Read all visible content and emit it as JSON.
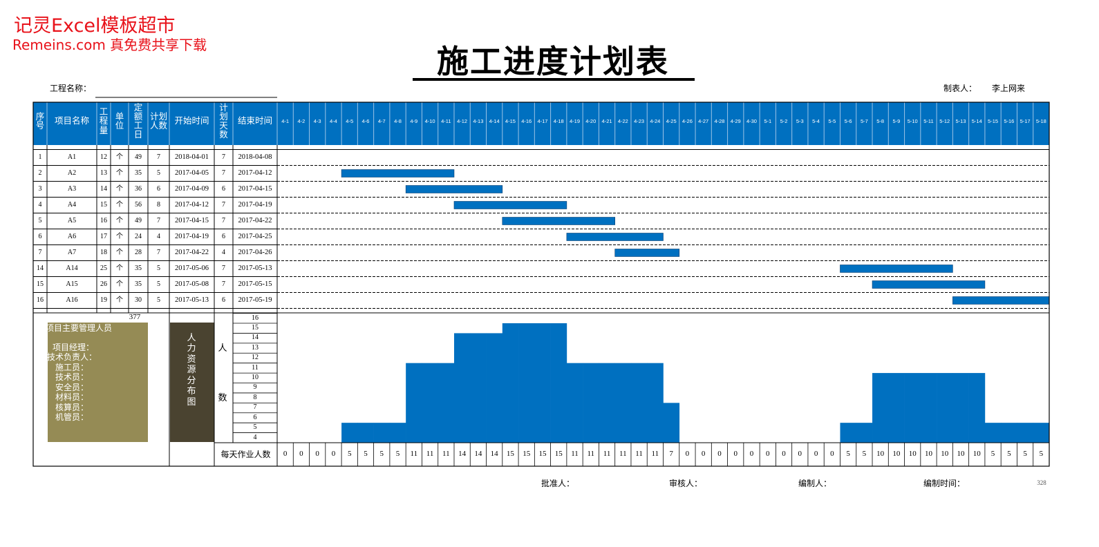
{
  "watermark": {
    "brand": "记灵Excel模板超市",
    "tagline": "Remeins.com 真免费共享下载"
  },
  "header": {
    "title": "施工进度计划表",
    "project_label": "工程名称：",
    "maker_label": "制表人：",
    "maker": "李上网来"
  },
  "table": {
    "columns": [
      "序号",
      "项目名称",
      "工程量",
      "单位",
      "定额工日",
      "计划人数",
      "开始时间",
      "计划天数",
      "结束时间"
    ],
    "dates": [
      "4-1",
      "4-2",
      "4-3",
      "4-4",
      "4-5",
      "4-6",
      "4-7",
      "4-8",
      "4-9",
      "4-10",
      "4-11",
      "4-12",
      "4-13",
      "4-14",
      "4-15",
      "4-16",
      "4-17",
      "4-18",
      "4-19",
      "4-20",
      "4-21",
      "4-22",
      "4-23",
      "4-24",
      "4-25",
      "4-26",
      "4-27",
      "4-28",
      "4-29",
      "4-30",
      "5-1",
      "5-2",
      "5-3",
      "5-4",
      "5-5",
      "5-6",
      "5-7",
      "5-8",
      "5-9",
      "5-10",
      "5-11",
      "5-12",
      "5-13",
      "5-14",
      "5-15",
      "5-16",
      "5-17",
      "5-18"
    ],
    "rows": [
      [
        1,
        "A1",
        12,
        "个",
        49,
        7,
        "2018-04-01",
        7,
        "2018-04-08"
      ],
      [
        2,
        "A2",
        13,
        "个",
        35,
        5,
        "2017-04-05",
        7,
        "2017-04-12"
      ],
      [
        3,
        "A3",
        14,
        "个",
        36,
        6,
        "2017-04-09",
        6,
        "2017-04-15"
      ],
      [
        4,
        "A4",
        15,
        "个",
        56,
        8,
        "2017-04-12",
        7,
        "2017-04-19"
      ],
      [
        5,
        "A5",
        16,
        "个",
        49,
        7,
        "2017-04-15",
        7,
        "2017-04-22"
      ],
      [
        6,
        "A6",
        17,
        "个",
        24,
        4,
        "2017-04-19",
        6,
        "2017-04-25"
      ],
      [
        7,
        "A7",
        18,
        "个",
        28,
        7,
        "2017-04-22",
        4,
        "2017-04-26"
      ],
      [
        14,
        "A14",
        25,
        "个",
        35,
        5,
        "2017-05-06",
        7,
        "2017-05-13"
      ],
      [
        15,
        "A15",
        26,
        "个",
        35,
        5,
        "2017-05-08",
        7,
        "2017-05-15"
      ],
      [
        16,
        "A16",
        19,
        "个",
        30,
        5,
        "2017-05-13",
        6,
        "2017-05-19"
      ]
    ],
    "header_color": "#0070C0",
    "bar_color": "#0070C0"
  },
  "summary": {
    "total": 377,
    "panel_title": "项目主要管理人员",
    "staff": [
      "项目经理：",
      "技术负责人：",
      "施工员：",
      "技术员：",
      "安全员：",
      "材料员：",
      "核算员：",
      "机管员："
    ],
    "panel_color": "#958B55",
    "side_label": "人力资源分布图",
    "side_color": "#4A4330",
    "axis_label": [
      "人",
      "数"
    ],
    "yticks": [
      16,
      15,
      14,
      13,
      12,
      11,
      10,
      9,
      8,
      7,
      6,
      5,
      4
    ],
    "ylim": [
      3,
      16
    ],
    "daily_label": "每天作业人数",
    "daily": [
      0,
      0,
      0,
      0,
      5,
      5,
      5,
      5,
      11,
      11,
      11,
      14,
      14,
      14,
      15,
      15,
      15,
      15,
      11,
      11,
      11,
      11,
      11,
      11,
      7,
      0,
      0,
      0,
      0,
      0,
      0,
      0,
      0,
      0,
      0,
      5,
      5,
      10,
      10,
      10,
      10,
      10,
      10,
      10,
      5,
      5,
      5,
      5
    ],
    "color": "#0070C0"
  },
  "footer": {
    "approver": "批准人：",
    "reviewer": "审核人：",
    "compiler": "编制人：",
    "date": "编制时间：",
    "page": 328
  }
}
